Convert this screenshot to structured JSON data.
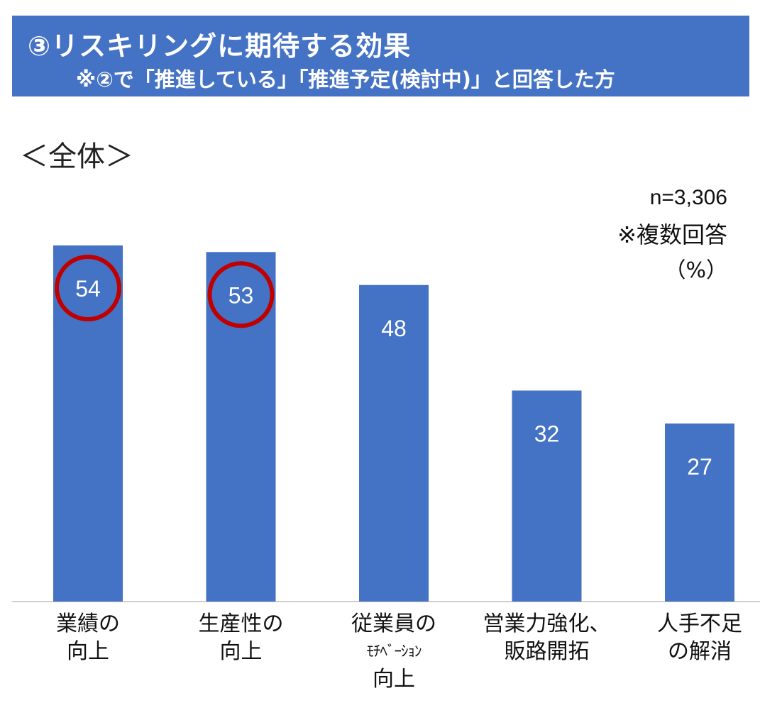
{
  "header": {
    "title": "③リスキリングに期待する効果",
    "subtitle": "※②で「推進している」「推進予定(検討中)」と回答した方"
  },
  "section_label": "＜全体＞",
  "notes": {
    "n": "n=3,306",
    "multi": "※複数回答",
    "unit": "（%）"
  },
  "chart_data": {
    "type": "bar",
    "categories": [
      [
        "業績の",
        "向上"
      ],
      [
        "生産性の",
        "向上"
      ],
      [
        "従業員の",
        "ﾓﾁﾍﾞｰｼｮﾝ",
        "向上"
      ],
      [
        "営業力強化、",
        "販路開拓"
      ],
      [
        "人手不足",
        "の解消"
      ]
    ],
    "values": [
      54,
      53,
      48,
      32,
      27
    ],
    "highlighted": [
      0,
      1
    ],
    "bar_color": "#4472c4",
    "highlight_color": "#c00000",
    "data_label_color": "#ffffff",
    "ylim": [
      0,
      60
    ],
    "grid": false,
    "legend": "none"
  }
}
